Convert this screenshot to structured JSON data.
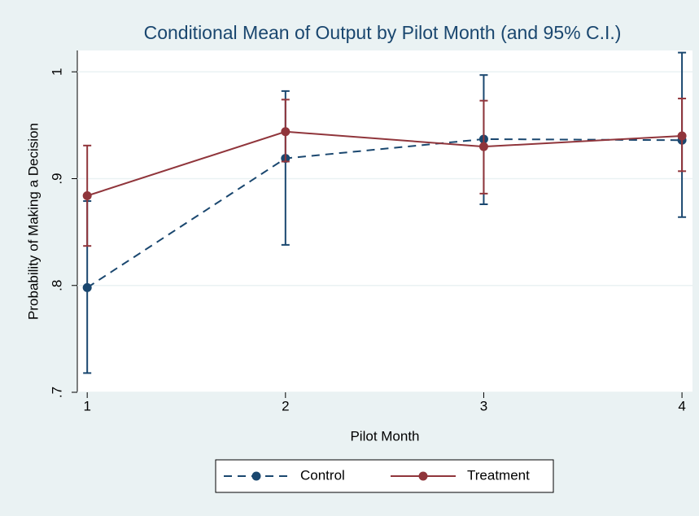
{
  "chart_data": {
    "type": "line",
    "title": "Conditional Mean of Output by Pilot Month (and 95% C.I.)",
    "x_label": "Pilot Month",
    "y_label": "Probability of Making a Decision",
    "x": [
      1,
      2,
      3,
      4
    ],
    "series": [
      {
        "name": "Control",
        "color": "#1a476f",
        "dash": true,
        "values": [
          0.798,
          0.919,
          0.937,
          0.936
        ],
        "lower": [
          0.718,
          0.838,
          0.876,
          0.864
        ],
        "upper": [
          0.879,
          0.982,
          0.997,
          1.018
        ]
      },
      {
        "name": "Treatment",
        "color": "#90353b",
        "dash": false,
        "values": [
          0.884,
          0.944,
          0.93,
          0.94
        ],
        "lower": [
          0.837,
          0.916,
          0.886,
          0.907
        ],
        "upper": [
          0.931,
          0.974,
          0.973,
          0.975
        ]
      }
    ],
    "xlim": [
      0.95,
      4.053
    ],
    "xticks": [
      1,
      2,
      3,
      4
    ],
    "ylim": [
      0.7,
      1.02
    ],
    "yticks": [
      {
        "value": 0.7,
        "label": ".7"
      },
      {
        "value": 0.8,
        "label": ".8"
      },
      {
        "value": 0.9,
        "label": ".9"
      },
      1
    ],
    "grid": true,
    "legend": "bottom"
  }
}
